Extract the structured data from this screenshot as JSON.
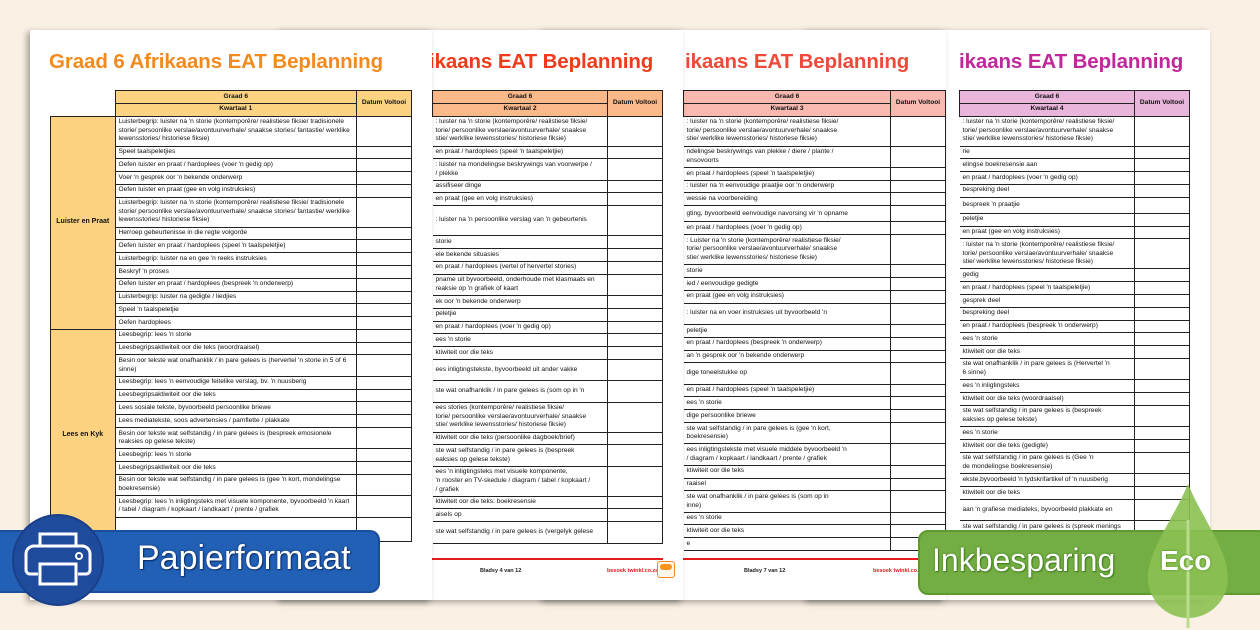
{
  "colors": {
    "background": "#faf1e4",
    "paper_banner": "#2160b4",
    "eco_banner": "#73ad43",
    "footer_red": "#e21b1b"
  },
  "pages": [
    {
      "title": "Graad 6 Afrikaans EAT Beplanning",
      "title_color": "#f28a1e",
      "header_color": "#fdd382",
      "category_color": "#fdd382",
      "header_grade": "Graad 6",
      "header_term": "Kwartaal 1",
      "header_date": "Datum Voltooi",
      "categories": [
        {
          "label": "Luister en Praat",
          "rows": [
            "Luisterbegrip: luister na 'n storie (kontemporêre/ realistiese fiksie/ tradisionele storie/ persoonlike verslae/avontuurverhale/ snaakse stories/ fantastie/ werklike lewensstories/ historiese fiksie)",
            "Speel taalspeletjies",
            "Oefen luister en praat / hardoplees (voer 'n gedig op)",
            "Voer 'n gesprek oor 'n bekende onderwerp",
            "Oefen luister en praat (gee en volg instruksies)",
            "Luisterbegrip: luister na 'n storie (kontemporêre/ realistiese fiksie/ tradisionele storie/ persoonlike verslae/avontuurverhale/ snaakse stories/ fantastie/ werklike lewensstories/ historiese fiksie)",
            "Herroep gebeurtenisse in die regte volgorde",
            "Oefen luister en praat / hardoplees (speel 'n taalspeletjie)",
            "Luisterbegrip: luister na en gee 'n reeks instruksies",
            "Beskryf 'n proses",
            "Oefen luister en praat / hardoplees (bespreek 'n onderwerp)",
            "Luisterbegrip: luister na gedigte / liedjies",
            "Speel 'n taalspeletjie",
            "Oefen hardoplees"
          ]
        },
        {
          "label": "Lees en Kyk",
          "rows": [
            "Leesbegrip: lees 'n storie",
            "Leesbegripsaktiwiteit oor die teks (woordraaisel)",
            "Besin oor tekste wat onafhanklik / in pare gelees is (hervertel 'n storie in 5 of 6 sinne)",
            "Leesbegrip: lees 'n eenvoudige feitelike verslag, bv. 'n nuusberig",
            "Leesbegripsaktiwiteit oor die teks",
            "Lees sosiale tekste, byvoorbeeld persoonlike briewe",
            "Lees mediatekste, soos advertensies / pamflette / plakkate",
            "Besin oor tekste wat selfstandig / in pare gelees is (bespreek emosionele reaksies op gelese tekste)",
            "Leesbegrip: lees 'n storie",
            "Leesbegripsaktiwiteit oor die teks",
            "Besin oor tekste wat selfstandig / in pare gelees is (gee 'n kort, mondelingse boekresensie)",
            "Leesbegrip: lees 'n inligtingsteks met visuele komponente, byvoorbeeld 'n kaart / tabel / diagram / kopkaart / landkaart / prente / grafiek",
            ""
          ]
        }
      ]
    },
    {
      "title": "ikaans EAT Beplanning",
      "title_color": "#ef3a1b",
      "header_color": "#fbb98a",
      "header_grade": "Graad 6",
      "header_term": "Kwartaal 2",
      "header_date": "Datum Voltooi",
      "rows": [
        ": luister na 'n storie (kontemporêre/ realistiese fiksie/\ntorie/ persoonlike verslae/avontuurverhale/ snaakse\nstie/ werklike lewensstories/ historiese fiksie)",
        "en praat / hardoplees (speel 'n taalspeletjie)",
        ": luister na mondelingse beskrywings van voorwerpe /\n/ plekke",
        "assifiseer dinge",
        "en praat (gee en volg instruksies)",
        ": luister na 'n persoonlike verslag van 'n gebeurtenis",
        "storie",
        "ele bekende situasies",
        "en praat / hardoplees (vertel of hervertel stories)",
        "pname uit byvoorbeeld, onderhoude met klasmaats en\nreaksie op 'n grafiek of kaart",
        "ek oor 'n bekende onderwerp",
        "peletjie",
        "en praat / hardoplees (voer 'n gedig op)",
        "ees 'n storie",
        "ktiwiteit oor die teks",
        "ees inligtingstekste, byvoorbeeld uit ander vakke",
        "ste wat onafhanklik / in pare gelees is (som op in 'n",
        "ees stories (kontemporêre/ realistiese fiksie/\ntorie/ persoonlike verslae/avontuurverhale/ snaakse\nstie/ werklike lewensstories/ historiese fiksie)",
        "ktiwiteit oor die teks (persoonlike dagboek/brief)",
        "ste wat selfstandig / in pare gelees is (bespreek\neaksies op gelese tekste)",
        "ees 'n inligtingsteks met visuele komponente,\n'n rooster en TV-skedule / diagram / tabel / kopkaart /\n / grafiek",
        "ktiwiteit oor die teks: boekresensie",
        "aisels op",
        "ste wat selfstandig / in pare gelees is (vergelyk gelese"
      ],
      "footer_page": "Bladsy 4 van 12",
      "footer_link": "besoek twinkl.co.za"
    },
    {
      "title": "ikaans EAT Beplanning",
      "title_color": "#ee4a3a",
      "header_color": "#f9b9b0",
      "header_grade": "Graad 6",
      "header_term": "Kwartaal 3",
      "header_date": "Datum Voltooi",
      "rows": [
        ": luister na 'n storie (kontemporêre/ realistiese fiksie/\ntorie/ persoonlike verslae/avontuurverhale/ snaakse\nstie/ werklike lewensstories/ historiese fiksie)",
        "ndelingse beskrywings van plekke / diere / plante /\nensovoorts",
        "en praat / hardoplees (speel 'n taalspeletjie)",
        ": luister na 'n eenvoudige praatjie oor 'n onderwerp",
        "wessie na voorbereiding",
        "gting, byvoorbeeld eenvoudige navorsing vir 'n opname",
        "en praat / hardoplees (voer 'n gedig op)",
        ": Luister na 'n storie (kontemporêre/ realistiese fiksie/\ntorie/ persoonlike verslae/avontuurverhale/ snaakse\nstie/ werklike lewensstories/ historiese fiksie)",
        "storie",
        "ied / eenvoudige gedigte",
        "en praat (gee en volg instruksies)",
        ": luister na en voer instruksies uit byvoorbeeld 'n",
        "peletjie",
        "en praat / hardoplees (bespreek 'n onderwerp)",
        "an 'n gesprek oor 'n bekende onderwerp",
        "dige toneelstukke op",
        "en praat / hardoplees (speel 'n taalspeletjie)",
        "ees 'n storie",
        "dige persoonlike briewe",
        "ste wat selfstandig / in pare gelees is (gee 'n kort,\n boekresensie)",
        "ees inligtingstekste met visuele middele byvoorbeeld 'n\n/ diagram / kopkaart / landkaart / prente / grafiek",
        "ktiwiteit oor die teks",
        "raaisel",
        "ste wat onafhanklik / in pare gelees is (som op in\ninne)",
        "ees 'n storie",
        "ktiwiteit oor die teks",
        "e"
      ],
      "footer_page": "Bladsy 7 van 12",
      "footer_link": "besoek twinkl.co.za"
    },
    {
      "title": "ikaans EAT Beplanning",
      "title_color": "#c0279a",
      "header_color": "#e9b5da",
      "header_grade": "Graad 6",
      "header_term": "Kwartaal 4",
      "header_date": "Datum Voltooi",
      "rows": [
        ": luister na 'n storie (kontemporêre/ realistiese fiksie/\ntorie/ persoonlike verslae/avontuurverhale/ snaakse\nstie/ werklike lewensstories/ historiese fiksie)",
        "rie",
        "elingse boekresensie aan",
        "en praat / hardoplees (voer 'n gedig op)",
        "bespreking deel",
        "bespreek 'n praatjie",
        "peletjie",
        "en praat (gee en volg instruksies)",
        ": luister na 'n storie (kontemporêre/ realistiese fiksie/\ntorie/ persoonlike verslae/avontuurverhale/ snaakse\nstie/ werklike lewensstories/ historiese fiksie)",
        "gedig",
        "en praat / hardoplees (speel 'n taalspeletjie)",
        "gesprek deel",
        "bespreking deel",
        "en praat / hardoplees (bespreek 'n onderwerp)",
        "ees 'n storie",
        "ktiwiteit oor die teks",
        "ste wat onafhanklik / in pare gelees is (Hervertel 'n\n6 sinne)",
        "ees 'n inligtingsteks",
        "ktiwiteit oor die teks (woordraaisel)",
        "ste wat selfstandig / in pare gelees is (bespreek\neaksies op gelese tekste)",
        "ees 'n storie",
        "ktiwiteit oor die teks (gedigte)",
        "ste wat selfstandig / in pare gelees is (Gee 'n\nde mondelingse boekresensie)",
        "ekste,byvoorbeeld 'n tydskrifartikel of 'n nuusberig",
        "ktiwiteit oor die teks",
        "aan 'n grafiese mediateks, byvoorbeeld plakkate en",
        "ste wat selfstandig / in pare gelees is (spreek menings"
      ]
    }
  ],
  "banners": {
    "paper": {
      "label": "Papierformaat",
      "icon": "printer-icon"
    },
    "eco": {
      "label": "Inkbesparing",
      "badge": "Eco",
      "icon": "leaf-icon"
    }
  }
}
